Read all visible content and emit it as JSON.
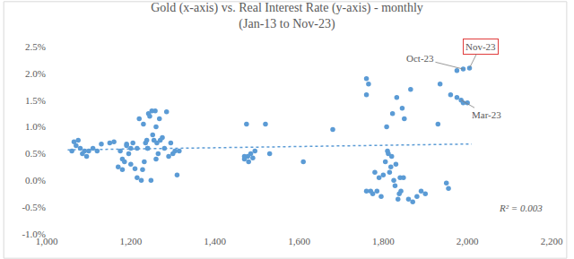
{
  "chart_data": {
    "type": "scatter",
    "title": "Gold (x-axis) vs. Real Interest Rate (y-axis) - monthly\n(Jan-13 to Nov-23)",
    "grid": false,
    "xlim": [
      1000,
      2200
    ],
    "xticks": [
      {
        "value": 1000,
        "label": "1,000"
      },
      {
        "value": 1200,
        "label": "1,200"
      },
      {
        "value": 1400,
        "label": "1,400"
      },
      {
        "value": 1600,
        "label": "1,600"
      },
      {
        "value": 1800,
        "label": "1,800"
      },
      {
        "value": 2000,
        "label": "2,000"
      },
      {
        "value": 2200,
        "label": "2,200"
      }
    ],
    "ylim": [
      -1.0,
      2.5
    ],
    "yticks": [
      {
        "value": -1.0,
        "label": "-1.0%"
      },
      {
        "value": -0.5,
        "label": "-0.5%"
      },
      {
        "value": 0,
        "label": "0.0%"
      },
      {
        "value": 0.5,
        "label": "0.5%"
      },
      {
        "value": 1.0,
        "label": "1.0%"
      },
      {
        "value": 1.5,
        "label": "1.5%"
      },
      {
        "value": 2.0,
        "label": "2.0%"
      },
      {
        "value": 2.5,
        "label": "2.5%"
      }
    ],
    "series": [
      {
        "type": "scatter",
        "marker": "circle",
        "color": "#5b9bd5",
        "x": [
          1060,
          1065,
          1070,
          1075,
          1080,
          1085,
          1090,
          1095,
          1100,
          1110,
          1130,
          1150,
          1160,
          1170,
          1175,
          1180,
          1185,
          1190,
          1195,
          1200,
          1205,
          1210,
          1215,
          1220,
          1225,
          1228,
          1230,
          1232,
          1235,
          1238,
          1240,
          1242,
          1245,
          1248,
          1250,
          1252,
          1255,
          1258,
          1260,
          1262,
          1265,
          1268,
          1270,
          1275,
          1280,
          1285,
          1290,
          1295,
          1300,
          1305,
          1310,
          1315,
          1260,
          1200,
          1180,
          1215,
          1240,
          1120,
          1190,
          1470,
          1475,
          1478,
          1480,
          1485,
          1490,
          1495,
          1520,
          1530,
          1610,
          1680,
          1470,
          1760,
          1765,
          1770,
          1775,
          1780,
          1785,
          1790,
          1795,
          1800,
          1805,
          1808,
          1810,
          1815,
          1818,
          1820,
          1822,
          1825,
          1828,
          1830,
          1832,
          1835,
          1838,
          1840,
          1842,
          1845,
          1848,
          1850,
          1860,
          1865,
          1870,
          1880,
          1890,
          1900,
          1930,
          1935,
          1950,
          1955,
          1960,
          1975,
          1985,
          1990,
          2000,
          1975,
          1990,
          2005,
          1760,
          1812,
          1760
        ],
        "values": [
          0.55,
          0.72,
          0.65,
          0.75,
          0.6,
          0.5,
          0.55,
          0.45,
          0.55,
          0.6,
          0.68,
          0.7,
          0.72,
          0.25,
          0.55,
          0.4,
          0.35,
          0.65,
          0.5,
          0.6,
          0.7,
          0.22,
          0.6,
          1.15,
          0.0,
          0.2,
          1.05,
          0.35,
          0.7,
          0.75,
          0.6,
          1.25,
          1.2,
          0.0,
          1.3,
          0.85,
          0.75,
          1.3,
          1.0,
          0.7,
          0.5,
          1.15,
          0.75,
          0.8,
          0.6,
          1.28,
          0.45,
          0.7,
          0.5,
          0.55,
          0.1,
          0.55,
          0.4,
          0.3,
          0.2,
          0.05,
          0.6,
          0.55,
          0.68,
          0.4,
          1.05,
          0.45,
          0.35,
          0.5,
          0.42,
          0.55,
          1.05,
          0.5,
          0.35,
          0.95,
          0.45,
          1.9,
          1.8,
          -0.2,
          -0.25,
          0.15,
          -0.2,
          0.05,
          -0.3,
          0.1,
          0.35,
          1.0,
          0.55,
          0.15,
          0.25,
          0.45,
          1.25,
          0.0,
          -0.1,
          0.3,
          1.55,
          -0.35,
          -0.25,
          0.05,
          -0.2,
          1.35,
          0.05,
          1.15,
          -0.35,
          1.7,
          -0.4,
          -0.3,
          -0.2,
          -0.25,
          1.05,
          1.8,
          -0.05,
          -0.15,
          1.6,
          1.55,
          1.5,
          1.45,
          1.45,
          2.05,
          2.08,
          2.1,
          1.6,
          0.5,
          -0.2
        ]
      },
      {
        "type": "line",
        "line_style": "dot",
        "color": "#5b9bd5",
        "x": [
          1050,
          2010
        ],
        "values": [
          0.57,
          0.68
        ]
      }
    ],
    "annotations": [
      {
        "text": "Oct-23",
        "x": 1990,
        "y": 2.08
      },
      {
        "text": "Nov-23",
        "x": 2005,
        "y": 2.1,
        "color": "#e03c3c"
      },
      {
        "text": "Mar-23",
        "x": 1985,
        "y": 1.5
      },
      {
        "text": "R² = 0.003"
      }
    ]
  }
}
